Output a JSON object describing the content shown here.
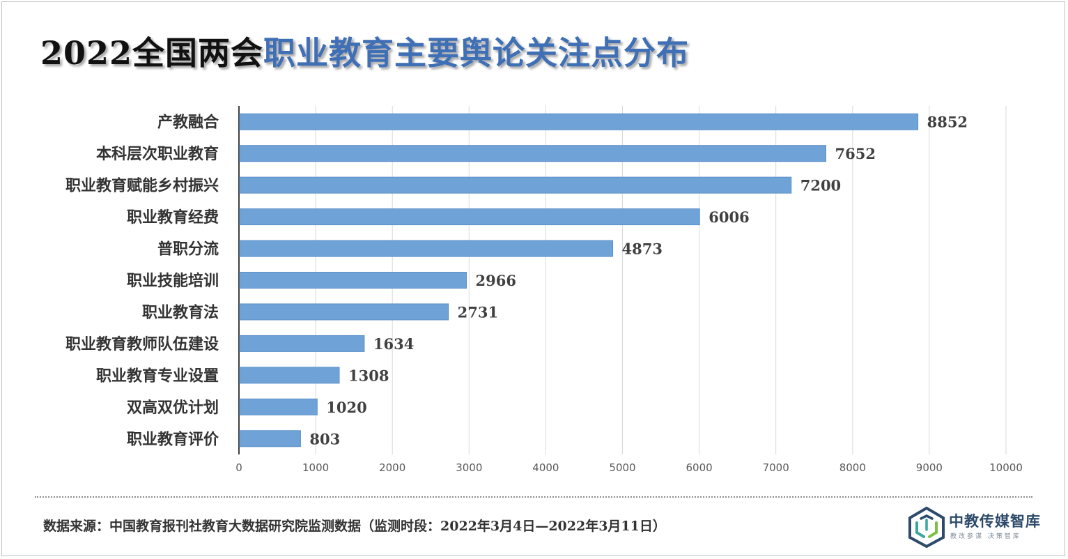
{
  "title": {
    "part1": "2022全国两会",
    "part2": "职业教育主要舆论关注点分布"
  },
  "chart_data": {
    "type": "bar",
    "orientation": "horizontal",
    "categories": [
      "产教融合",
      "本科层次职业教育",
      "职业教育赋能乡村振兴",
      "职业教育经费",
      "普职分流",
      "职业技能培训",
      "职业教育法",
      "职业教育教师队伍建设",
      "职业教育专业设置",
      "双高双优计划",
      "职业教育评价"
    ],
    "values": [
      8852,
      7652,
      7200,
      6006,
      4873,
      2966,
      2731,
      1634,
      1308,
      1020,
      803
    ],
    "xlim": [
      0,
      10000
    ],
    "xticks": [
      0,
      1000,
      2000,
      3000,
      4000,
      5000,
      6000,
      7000,
      8000,
      9000,
      10000
    ],
    "bar_color": "#6fa3d8",
    "grid": "vertical",
    "data_labels": true
  },
  "footer": {
    "source": "数据来源：中国教育报刊社教育大数据研究院监测数据（监测时段：2022年3月4日—2022年3月11日）"
  },
  "logo": {
    "name": "中教传媒智库",
    "slogan": "教改参谋  决策智库",
    "colors": {
      "teal": "#3aa6a0",
      "blue": "#2d4a6a",
      "green": "#7cc046"
    }
  }
}
